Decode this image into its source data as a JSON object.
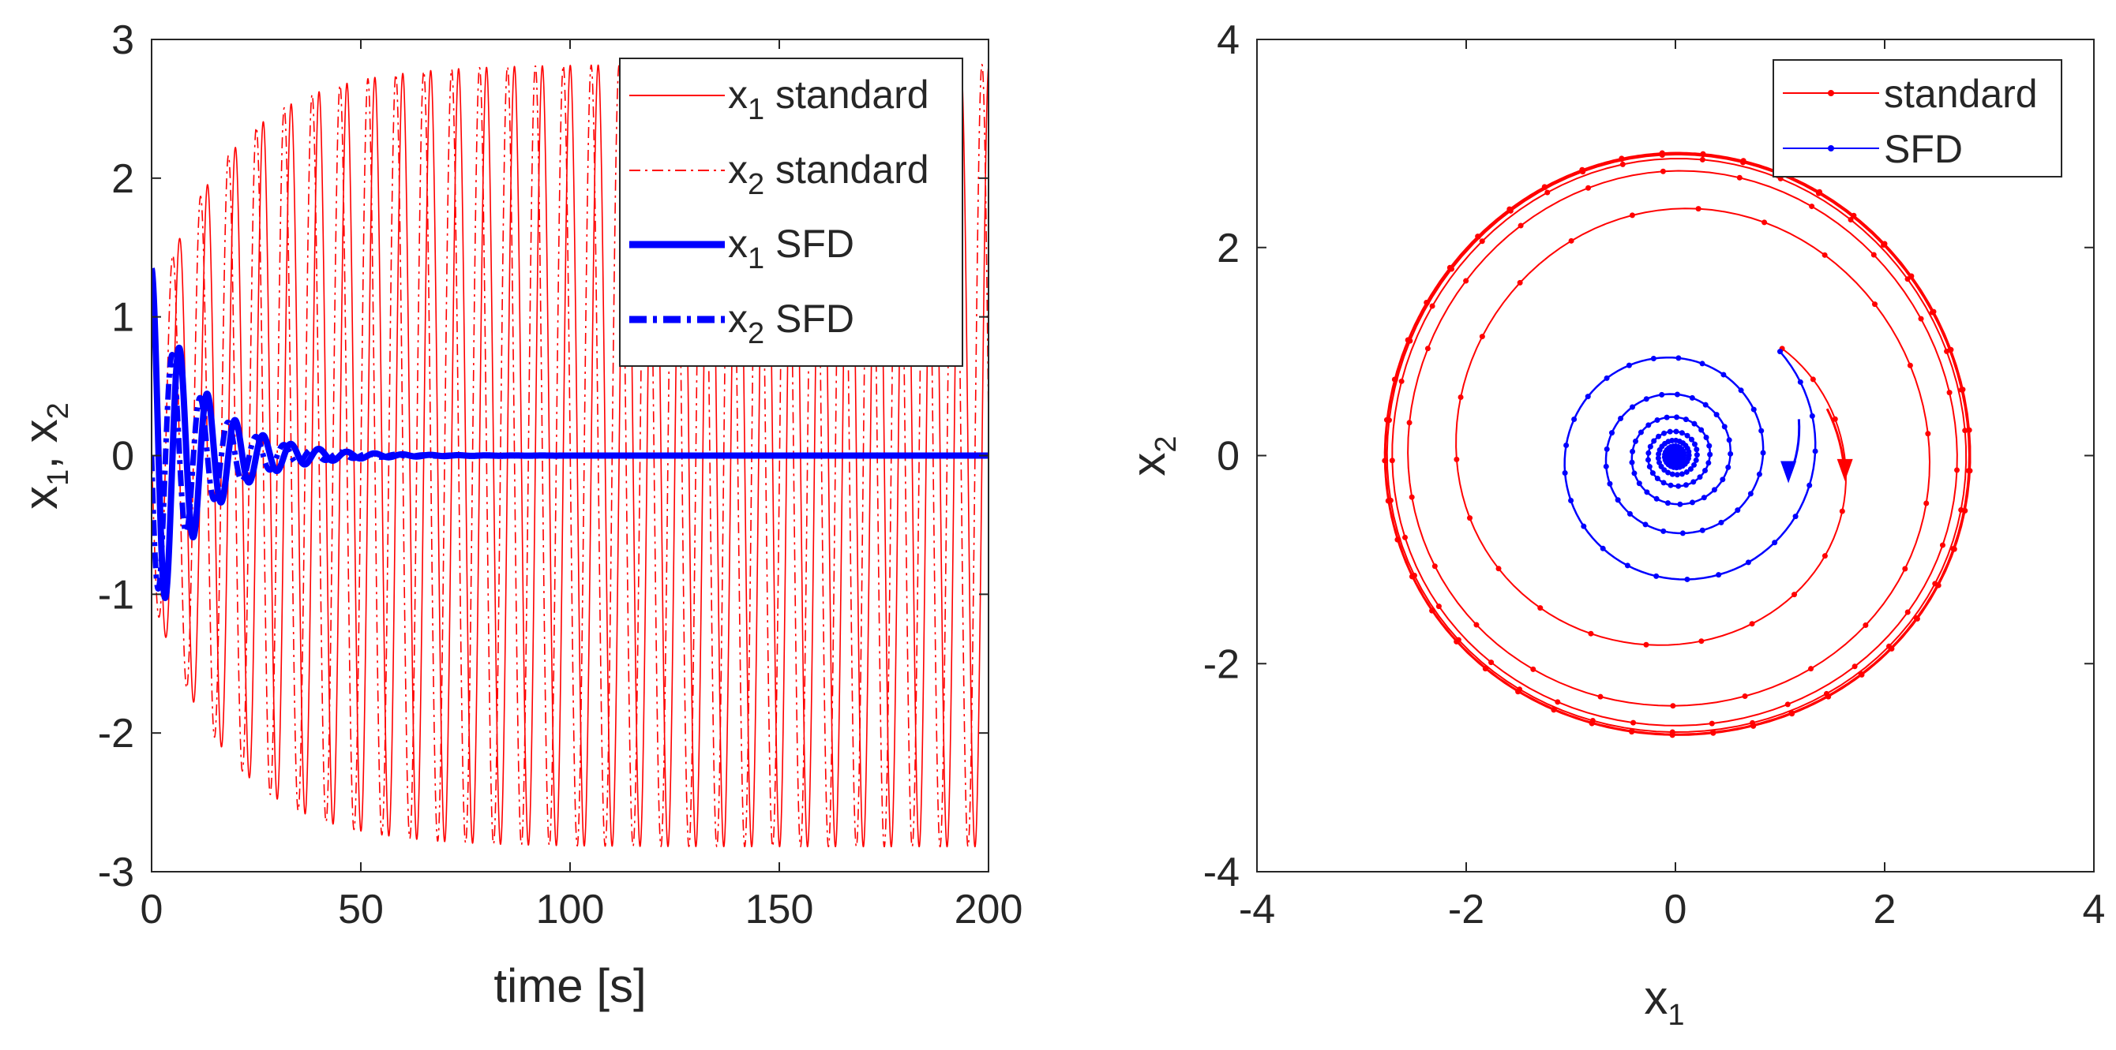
{
  "chart_data": [
    {
      "type": "line",
      "xlabel": "time [s]",
      "ylabel": {
        "main": "x",
        "sub1": "1",
        "sep": ", ",
        "main2": "x",
        "sub2": "2"
      },
      "xlim": [
        0,
        200
      ],
      "ylim": [
        -3,
        3
      ],
      "xticks": [
        "0",
        "50",
        "100",
        "150",
        "200"
      ],
      "xtick_values": [
        0,
        50,
        100,
        150,
        200
      ],
      "yticks": [
        "-3",
        "-2",
        "-1",
        "0",
        "1",
        "2",
        "3"
      ],
      "ytick_values": [
        -3,
        -2,
        -1,
        0,
        1,
        2,
        3
      ],
      "legend_position": "top-right",
      "series": [
        {
          "name": "x₁ standard",
          "label_main": "x",
          "label_sub": "1",
          "label_rest": " standard",
          "color": "#ff0000",
          "style": "solid-thin",
          "model": {
            "amplitude_final": 2.82,
            "amplitude_initial": 1.0,
            "growth_time": 18,
            "period": 6.67,
            "phase": 0.0
          }
        },
        {
          "name": "x₂ standard",
          "label_main": "x",
          "label_sub": "2",
          "label_rest": " standard",
          "color": "#ff0000",
          "style": "dashdot-thin",
          "model": {
            "amplitude_final": 2.82,
            "amplitude_initial": 1.0,
            "growth_time": 18,
            "period": 6.67,
            "phase": 1.57
          }
        },
        {
          "name": "x₁ SFD",
          "label_main": "x",
          "label_sub": "1",
          "label_rest": " SFD",
          "color": "#0000ff",
          "style": "solid-thick",
          "model": {
            "amplitude_initial": 1.35,
            "decay_time": 12,
            "period": 6.67,
            "phase": 0.0
          }
        },
        {
          "name": "x₂ SFD",
          "label_main": "x",
          "label_sub": "2",
          "label_rest": " SFD",
          "color": "#0000ff",
          "style": "dashdot-thick",
          "model": {
            "amplitude_initial": 1.1,
            "decay_time": 12,
            "period": 6.67,
            "phase": 1.57
          }
        }
      ]
    },
    {
      "type": "line",
      "xlabel": {
        "main": "x",
        "sub": "1"
      },
      "ylabel": {
        "main": "x",
        "sub": "2"
      },
      "xlim": [
        -4,
        4
      ],
      "ylim": [
        -4,
        4
      ],
      "xticks": [
        "-4",
        "-2",
        "0",
        "2",
        "4"
      ],
      "xtick_values": [
        -4,
        -2,
        0,
        2,
        4
      ],
      "yticks": [
        "-4",
        "-2",
        "0",
        "2",
        "4"
      ],
      "ytick_values": [
        -4,
        -2,
        0,
        2,
        4
      ],
      "legend_position": "top-right",
      "series": [
        {
          "name": "standard",
          "color": "#ff0000",
          "marker": "dot",
          "model": {
            "start": [
              1.0,
              1.0
            ],
            "limit_radius": 2.8,
            "turns": 8
          }
        },
        {
          "name": "SFD",
          "color": "#0000ff",
          "marker": "dot",
          "model": {
            "start": [
              1.0,
              1.0
            ],
            "final_radius": 0.0,
            "turns": 9
          }
        }
      ]
    }
  ]
}
